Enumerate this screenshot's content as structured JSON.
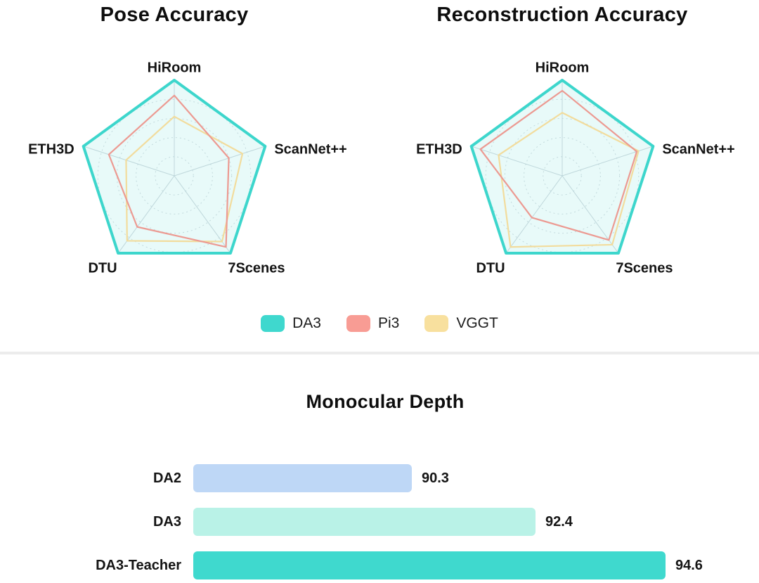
{
  "chart_data": [
    {
      "type": "radar",
      "title": "Pose Accuracy",
      "categories": [
        "HiRoom",
        "ScanNet++",
        "7Scenes",
        "DTU",
        "ETH3D"
      ],
      "rlim": [
        0,
        1
      ],
      "grid": "dotted-circles",
      "series": [
        {
          "name": "DA3",
          "values": [
            1.0,
            1.0,
            1.0,
            1.0,
            1.0
          ]
        },
        {
          "name": "Pi3",
          "values": [
            0.84,
            0.6,
            0.92,
            0.66,
            0.72
          ]
        },
        {
          "name": "VGGT",
          "values": [
            0.62,
            0.75,
            0.85,
            0.84,
            0.53
          ]
        }
      ]
    },
    {
      "type": "radar",
      "title": "Reconstruction Accuracy",
      "categories": [
        "HiRoom",
        "ScanNet++",
        "7Scenes",
        "DTU",
        "ETH3D"
      ],
      "rlim": [
        0,
        1
      ],
      "grid": "dotted-circles",
      "series": [
        {
          "name": "DA3",
          "values": [
            1.0,
            1.0,
            1.0,
            1.0,
            1.0
          ]
        },
        {
          "name": "Pi3",
          "values": [
            0.89,
            0.82,
            0.83,
            0.54,
            0.9
          ]
        },
        {
          "name": "VGGT",
          "values": [
            0.66,
            0.84,
            0.89,
            0.92,
            0.7
          ]
        }
      ]
    },
    {
      "type": "bar",
      "title": "Monocular Depth",
      "orientation": "horizontal",
      "categories": [
        "DA2",
        "DA3",
        "DA3-Teacher"
      ],
      "values": [
        90.3,
        92.4,
        94.6
      ],
      "xlim": [
        86.6,
        94.6
      ],
      "legend_position": "none"
    }
  ],
  "legend": {
    "entries": [
      {
        "label": "DA3",
        "color": "#3fd8ce"
      },
      {
        "label": "Pi3",
        "color": "#f89c94"
      },
      {
        "label": "VGGT",
        "color": "#f8e09e"
      }
    ]
  },
  "colors": {
    "series": {
      "DA3": "#3dd6cc",
      "Pi3": "#ec9a92",
      "VGGT": "#f2dc9d"
    },
    "radar_fill": "rgba(63,217,206,0.12)",
    "grid_circle": "#c3ccd3",
    "spoke": "#c9d2d8",
    "bars": [
      "#bed7f6",
      "#b9f2e7",
      "#3fd9ce"
    ],
    "divider": "#ececec"
  }
}
